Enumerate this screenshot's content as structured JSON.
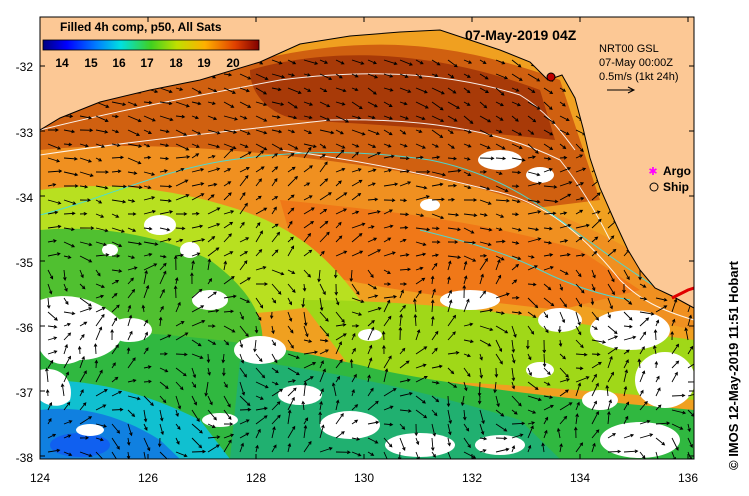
{
  "product_label": "Filled 4h comp, p50, All Sats",
  "date_label": "07-May-2019 04Z",
  "current_source": {
    "model": "NRT00 GSL",
    "time": "07-May 00:00Z",
    "scale": "0.5m/s (1kt 24h)"
  },
  "legend": {
    "argo_label": "Argo",
    "ship_label": "Ship"
  },
  "credit": "© IMOS 12-May-2019 11:51 Hobart",
  "colorbar": {
    "ticks": [
      "14",
      "15",
      "16",
      "17",
      "18",
      "19",
      "20"
    ],
    "min": 13.3,
    "max": 20.9
  },
  "axes": {
    "lat_ticks": [
      "-32",
      "-33",
      "-34",
      "-35",
      "-36",
      "-37",
      "-38"
    ],
    "lon_ticks": [
      "124",
      "126",
      "128",
      "130",
      "132",
      "134",
      "136"
    ]
  },
  "colors": {
    "land": "#fcc895",
    "cloud": "#ffffff",
    "argo": "#ff00ff",
    "ship": "#000000"
  }
}
